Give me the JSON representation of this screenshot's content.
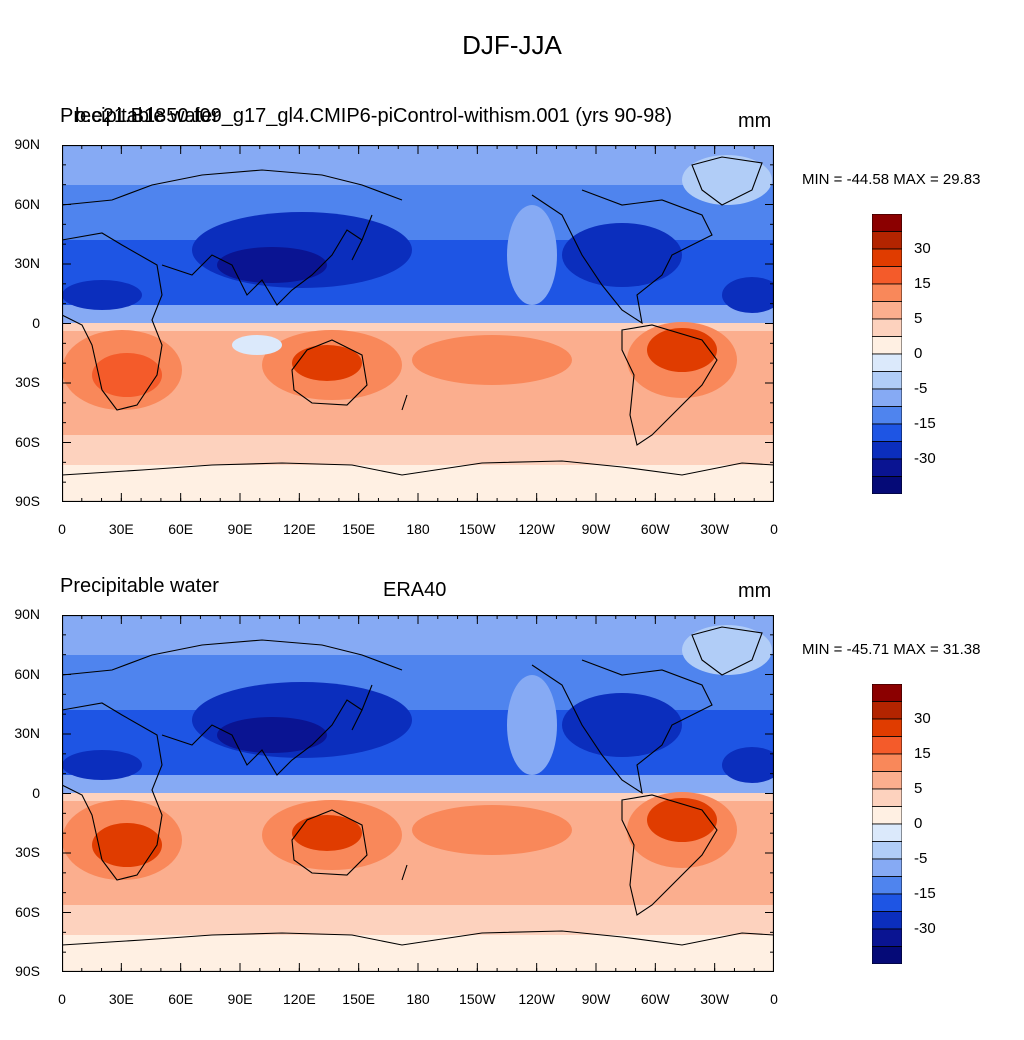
{
  "title": "DJF-JJA",
  "panels": [
    {
      "left_label": "Precipitable water",
      "center_label": "b.e21.B1850.f09_g17_gl4.CMIP6-piControl-withism.001 (yrs 90-98)",
      "right_label": "mm",
      "minmax": "MIN = -44.58 MAX =  29.83"
    },
    {
      "left_label": "Precipitable water",
      "center_label": "ERA40",
      "right_label": "mm",
      "minmax": "MIN = -45.71 MAX =  31.38"
    }
  ],
  "lat_ticks": [
    "90N",
    "60N",
    "30N",
    "0",
    "30S",
    "60S",
    "90S"
  ],
  "lon_ticks": [
    "0",
    "30E",
    "60E",
    "90E",
    "120E",
    "150E",
    "180",
    "150W",
    "120W",
    "90W",
    "60W",
    "30W",
    "0"
  ],
  "colorbar": {
    "labels": [
      "30",
      "15",
      "5",
      "0",
      "-5",
      "-15",
      "-30"
    ],
    "colors": [
      "#8b0000",
      "#b32400",
      "#e03c00",
      "#f45b2a",
      "#f9885a",
      "#fbae8e",
      "#fdd2be",
      "#fff0e3",
      "#dbe9fb",
      "#b1cdf7",
      "#86aaf4",
      "#4f84ee",
      "#1e55e4",
      "#0b2ebd",
      "#0a1492",
      "#050a77"
    ]
  },
  "colors": {
    "cold_band": "#1e55e4",
    "cold_deep": "#0b2ebd",
    "arctic": "#86aaf4",
    "warm_band": "#fbae8e",
    "warm_deep": "#e03c00",
    "antarctic": "#fff0e3"
  }
}
